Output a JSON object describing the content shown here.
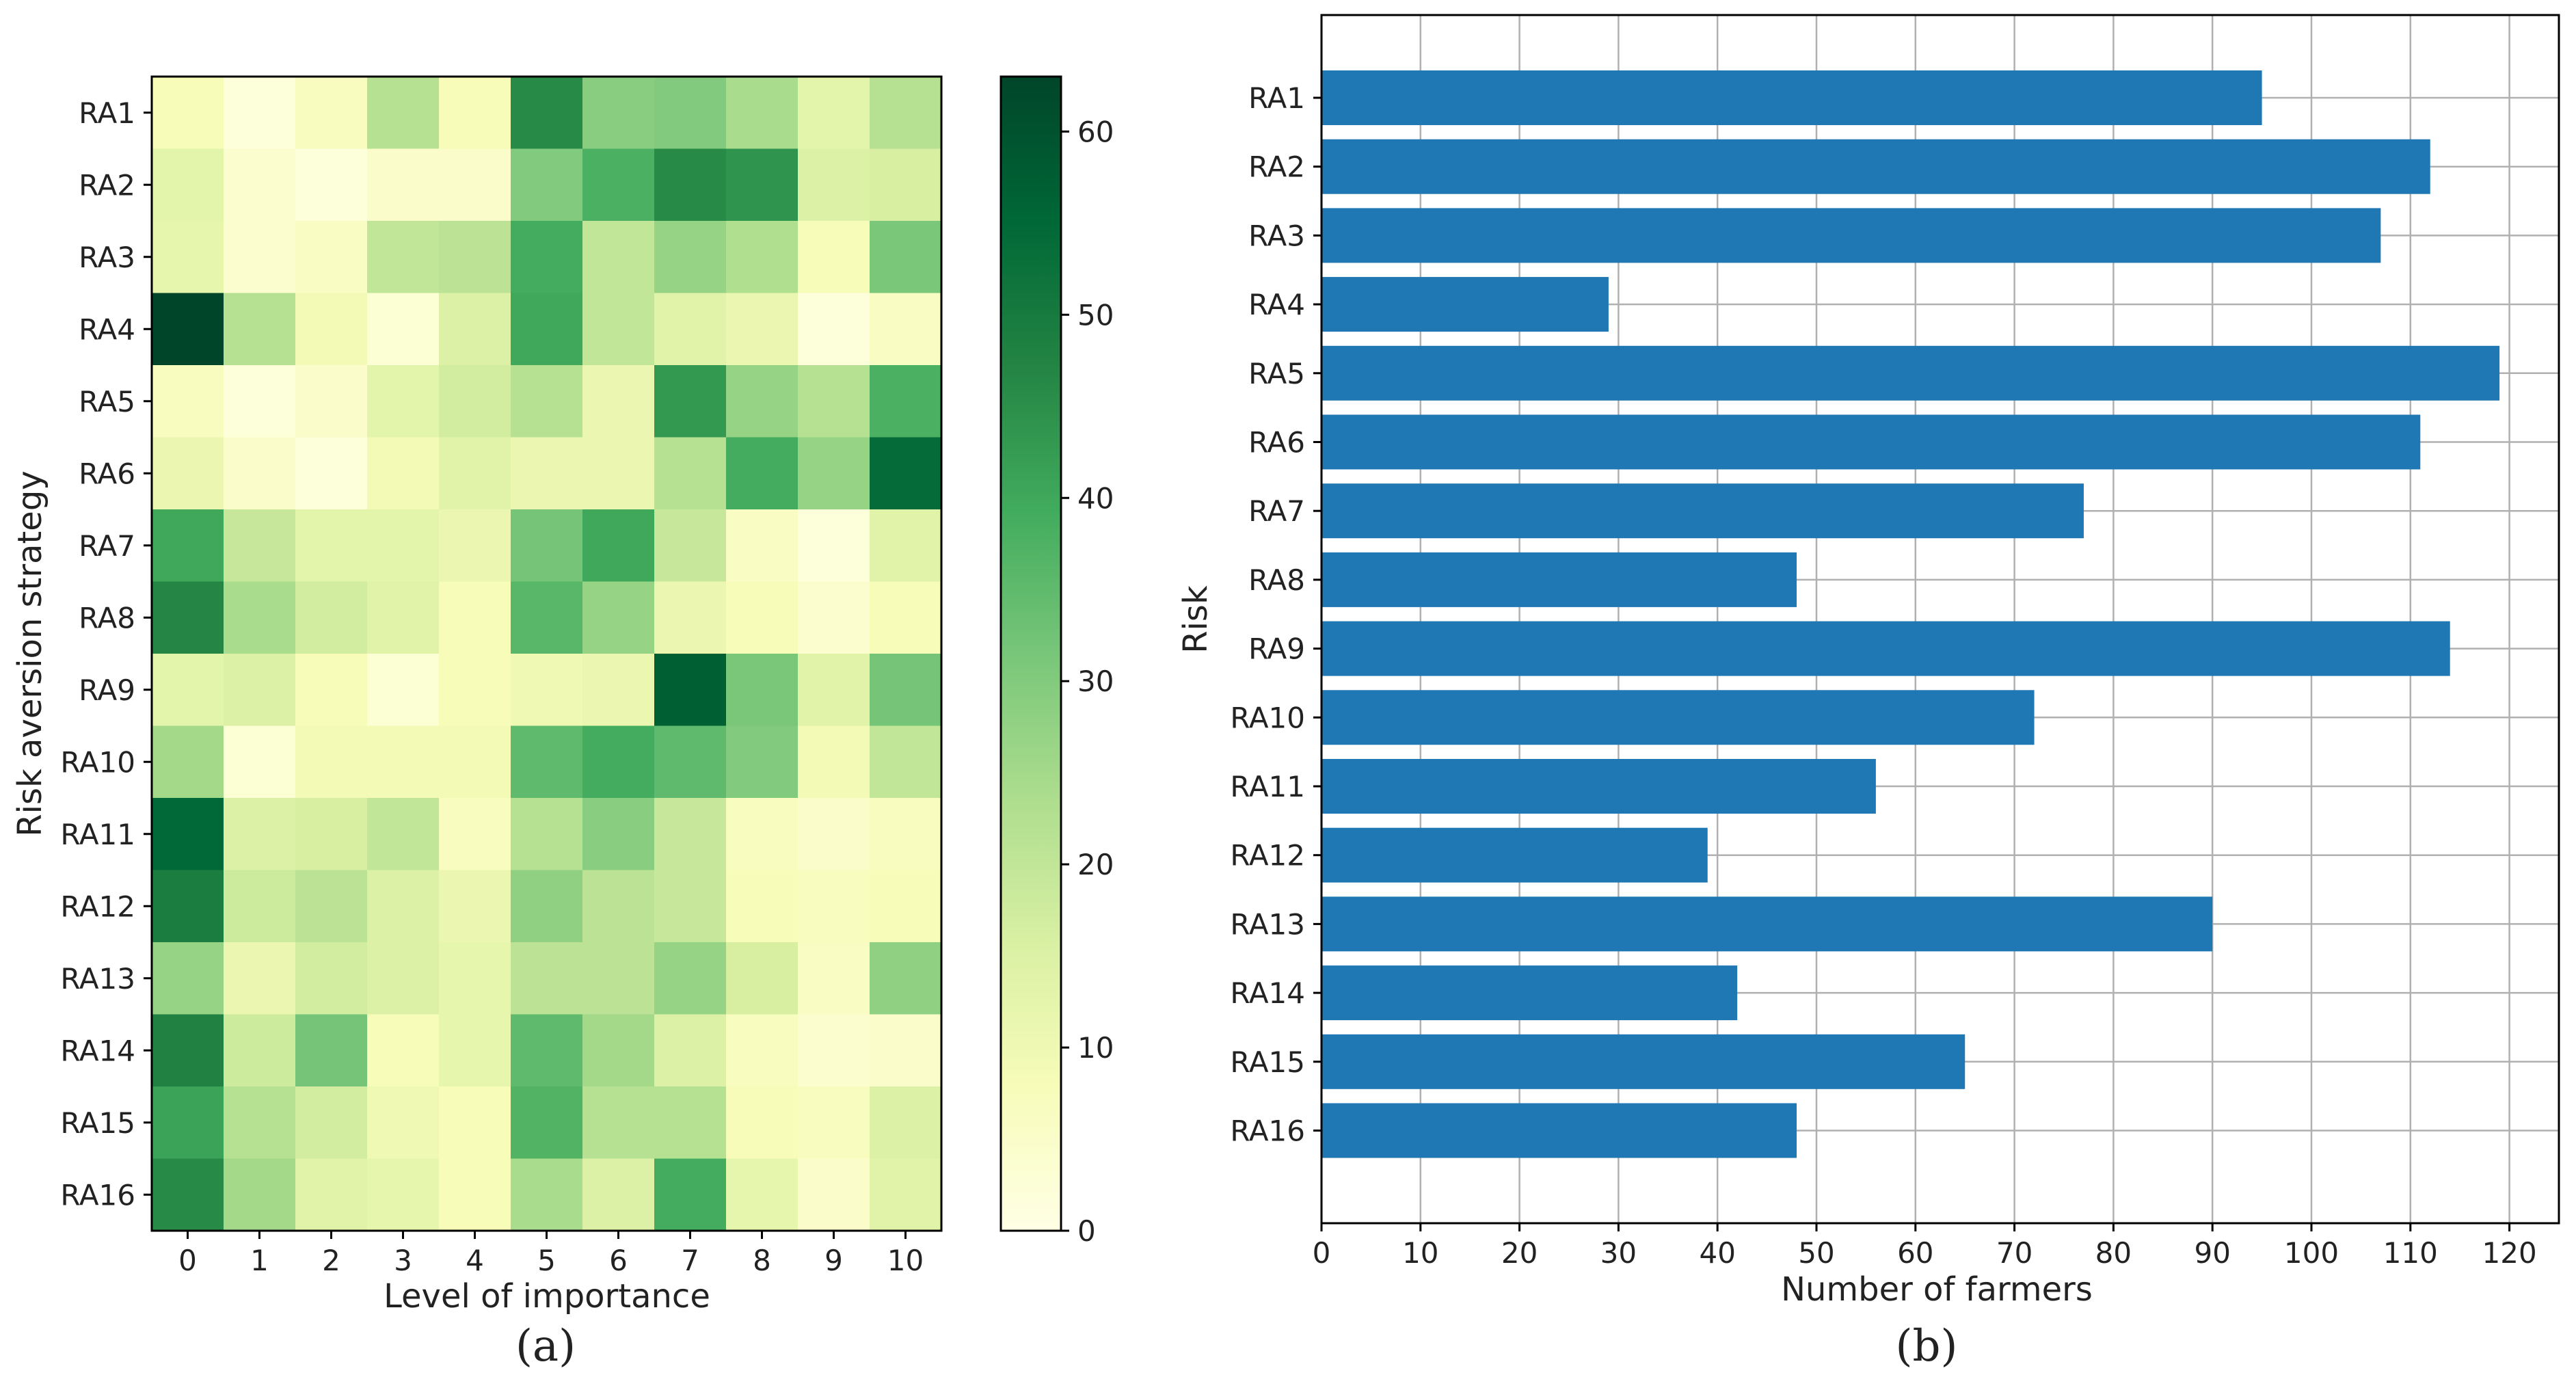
{
  "chart_data": [
    {
      "type": "heatmap",
      "panel_label": "(a)",
      "xlabel": "Level of importance",
      "ylabel": "Risk aversion strategy",
      "x_categories": [
        "0",
        "1",
        "2",
        "3",
        "4",
        "5",
        "6",
        "7",
        "8",
        "9",
        "10"
      ],
      "y_categories": [
        "RA1",
        "RA2",
        "RA3",
        "RA4",
        "RA5",
        "RA6",
        "RA7",
        "RA8",
        "RA9",
        "RA10",
        "RA11",
        "RA12",
        "RA13",
        "RA14",
        "RA15",
        "RA16"
      ],
      "colorbar": {
        "min": 0,
        "max": 63,
        "ticks": [
          "0",
          "10",
          "20",
          "30",
          "40",
          "50",
          "60"
        ],
        "colormap": "YlGn"
      },
      "values": [
        [
          8,
          2,
          7,
          22,
          8,
          46,
          29,
          30,
          24,
          13,
          22
        ],
        [
          13,
          4,
          2,
          5,
          5,
          30,
          38,
          46,
          44,
          15,
          16
        ],
        [
          12,
          4,
          6,
          20,
          21,
          39,
          20,
          27,
          23,
          8,
          31
        ],
        [
          63,
          22,
          9,
          3,
          15,
          40,
          20,
          14,
          11,
          2,
          6
        ],
        [
          7,
          2,
          5,
          13,
          17,
          22,
          11,
          43,
          27,
          22,
          38
        ],
        [
          11,
          5,
          2,
          9,
          14,
          11,
          11,
          22,
          39,
          27,
          54
        ],
        [
          40,
          19,
          13,
          13,
          11,
          32,
          40,
          19,
          6,
          2,
          14
        ],
        [
          47,
          24,
          17,
          14,
          8,
          36,
          27,
          11,
          8,
          4,
          8
        ],
        [
          13,
          15,
          8,
          3,
          8,
          10,
          11,
          57,
          31,
          14,
          32
        ],
        [
          25,
          3,
          9,
          9,
          9,
          35,
          39,
          35,
          30,
          9,
          20
        ],
        [
          55,
          15,
          16,
          20,
          7,
          22,
          29,
          19,
          7,
          5,
          7
        ],
        [
          49,
          18,
          21,
          15,
          11,
          28,
          21,
          19,
          8,
          7,
          8
        ],
        [
          27,
          11,
          17,
          15,
          12,
          21,
          21,
          27,
          16,
          6,
          28
        ],
        [
          48,
          18,
          32,
          8,
          12,
          35,
          25,
          15,
          7,
          4,
          5
        ],
        [
          41,
          22,
          17,
          10,
          8,
          37,
          22,
          22,
          8,
          7,
          15
        ],
        [
          46,
          25,
          14,
          12,
          8,
          24,
          15,
          39,
          12,
          5,
          14
        ]
      ]
    },
    {
      "type": "bar",
      "orientation": "horizontal",
      "panel_label": "(b)",
      "xlabel": "Number of farmers",
      "ylabel": "Risk",
      "categories": [
        "RA1",
        "RA2",
        "RA3",
        "RA4",
        "RA5",
        "RA6",
        "RA7",
        "RA8",
        "RA9",
        "RA10",
        "RA11",
        "RA12",
        "RA13",
        "RA14",
        "RA15",
        "RA16"
      ],
      "values": [
        95,
        112,
        107,
        29,
        119,
        111,
        77,
        48,
        114,
        72,
        56,
        39,
        90,
        42,
        65,
        48
      ],
      "xlim": [
        0,
        125
      ],
      "xticks": [
        0,
        10,
        20,
        30,
        40,
        50,
        60,
        70,
        80,
        90,
        100,
        110,
        120
      ],
      "grid": true,
      "bar_color": "#1f77b4"
    }
  ]
}
